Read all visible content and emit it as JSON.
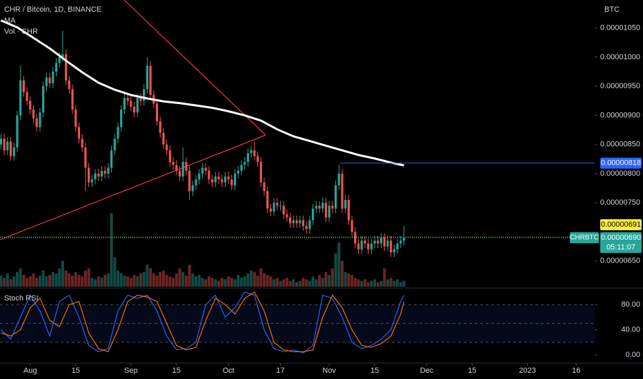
{
  "chart_data": [
    {
      "type": "candlestick",
      "title": "CHR / Bitcoin, 1D, BINANCE",
      "y_axis_label": "BTC",
      "up_color": "#26a69a",
      "down_color": "#ef5350",
      "xlim": [
        -0.3,
        182.7
      ],
      "xticks": [
        {
          "value": 9,
          "label": "Aug"
        },
        {
          "value": 23,
          "label": "15"
        },
        {
          "value": 40,
          "label": "Sep"
        },
        {
          "value": 54,
          "label": "15"
        },
        {
          "value": 70,
          "label": "Oct"
        },
        {
          "value": 86,
          "label": "17"
        },
        {
          "value": 101,
          "label": "Nov"
        },
        {
          "value": 115,
          "label": "15"
        },
        {
          "value": 131,
          "label": "Dec"
        },
        {
          "value": 145,
          "label": "15"
        },
        {
          "value": 162,
          "label": "2023"
        },
        {
          "value": 177,
          "label": "16"
        }
      ],
      "ylim": [
        6.06e-06,
        1.098e-05
      ],
      "yticks": [
        {
          "value": 1.05e-05,
          "label": "0.00001050"
        },
        {
          "value": 1e-05,
          "label": "0.00001000"
        },
        {
          "value": 9.5e-06,
          "label": "0.00000950"
        },
        {
          "value": 9e-06,
          "label": "0.00000900"
        },
        {
          "value": 8.5e-06,
          "label": "0.00000850"
        },
        {
          "value": 8e-06,
          "label": "0.00000800"
        },
        {
          "value": 7.5e-06,
          "label": "0.00000750"
        },
        {
          "value": 6.5e-06,
          "label": "0.00000650"
        }
      ],
      "open": [
        8.5e-06,
        8.6e-06,
        8.4e-06,
        8.55e-06,
        8.3e-06,
        8.45e-06,
        9e-06,
        9.6e-06,
        9.4e-06,
        9.25e-06,
        9.1e-06,
        8.95e-06,
        8.8e-06,
        9.05e-06,
        9.5e-06,
        9.65e-06,
        9.55e-06,
        9.75e-06,
        9.9e-06,
        1e-05,
        1.005e-05,
        9.6e-06,
        9.45e-06,
        9.1e-06,
        8.8e-06,
        8.6e-06,
        8.45e-06,
        8.1e-06,
        7.85e-06,
        7.9e-06,
        8e-06,
        7.95e-06,
        8.05e-06,
        8e-06,
        8.1e-06,
        8.4e-06,
        8.6e-06,
        8.8e-06,
        9.1e-06,
        9.3e-06,
        9.25e-06,
        9.15e-06,
        9.05e-06,
        9.3e-06,
        9.25e-06,
        9.45e-06,
        9.85e-06,
        9.35e-06,
        9.2e-06,
        8.9e-06,
        8.7e-06,
        8.5e-06,
        8.4e-06,
        8.2e-06,
        8.15e-06,
        8.05e-06,
        7.95e-06,
        8.2e-06,
        8.05e-06,
        7.7e-06,
        7.8e-06,
        7.9e-06,
        8e-06,
        8.1e-06,
        8.05e-06,
        7.9e-06,
        7.85e-06,
        7.95e-06,
        7.9e-06,
        7.85e-06,
        7.95e-06,
        7.9e-06,
        7.8e-06,
        8e-06,
        8.05e-06,
        8.15e-06,
        8.2e-06,
        8.35e-06,
        8.4e-06,
        8.3e-06,
        8.2e-06,
        7.85e-06,
        7.7e-06,
        7.4e-06,
        7.35e-06,
        7.5e-06,
        7.45e-06,
        7.45e-06,
        7.3e-06,
        7.25e-06,
        7.15e-06,
        7.2e-06,
        7.15e-06,
        7.2e-06,
        7.1e-06,
        7.05e-06,
        7.2e-06,
        7.4e-06,
        7.45e-06,
        7.4e-06,
        7.5e-06,
        7.25e-06,
        7.45e-06,
        7.4e-06,
        7.8e-06,
        8e-06,
        7.4e-06,
        7.55e-06,
        7.2e-06,
        7e-06,
        6.8e-06,
        6.7e-06,
        6.85e-06,
        6.8e-06,
        6.7e-06,
        6.8e-06,
        6.85e-06,
        6.8e-06,
        6.9e-06,
        6.75e-06,
        6.85e-06,
        6.65e-06,
        6.7e-06,
        6.8e-06,
        6.85e-06
      ],
      "high": [
        8.68e-06,
        8.68e-06,
        8.63e-06,
        8.63e-06,
        8.53e-06,
        9.08e-06,
        9.85e-06,
        9.68e-06,
        9.48e-06,
        9.33e-06,
        9.18e-06,
        9.03e-06,
        9.13e-06,
        9.58e-06,
        9.73e-06,
        9.73e-06,
        9.83e-06,
        9.98e-06,
        1.008e-05,
        1.045e-05,
        1.013e-05,
        9.68e-06,
        9.53e-06,
        9.18e-06,
        8.88e-06,
        8.68e-06,
        8.53e-06,
        8.18e-06,
        7.98e-06,
        8.08e-06,
        8.08e-06,
        8.13e-06,
        8.13e-06,
        8.18e-06,
        8.48e-06,
        8.68e-06,
        8.88e-06,
        9.18e-06,
        9.38e-06,
        9.38e-06,
        9.33e-06,
        9.23e-06,
        9.38e-06,
        9.38e-06,
        9.53e-06,
        1e-05,
        9.93e-06,
        9.43e-06,
        9.28e-06,
        8.98e-06,
        8.78e-06,
        8.58e-06,
        8.48e-06,
        8.28e-06,
        8.23e-06,
        8.13e-06,
        8.45e-06,
        8.28e-06,
        8.13e-06,
        7.88e-06,
        7.98e-06,
        8.08e-06,
        8.18e-06,
        8.18e-06,
        8.13e-06,
        7.98e-06,
        8.03e-06,
        8.03e-06,
        7.98e-06,
        8.03e-06,
        8.03e-06,
        7.98e-06,
        8.08e-06,
        8.13e-06,
        8.23e-06,
        8.28e-06,
        8.43e-06,
        8.48e-06,
        8.55e-06,
        8.38e-06,
        8.28e-06,
        7.93e-06,
        7.78e-06,
        7.48e-06,
        7.58e-06,
        7.58e-06,
        7.53e-06,
        7.53e-06,
        7.38e-06,
        7.33e-06,
        7.28e-06,
        7.28e-06,
        7.28e-06,
        7.28e-06,
        7.18e-06,
        7.28e-06,
        7.48e-06,
        7.53e-06,
        7.53e-06,
        7.58e-06,
        7.58e-06,
        7.53e-06,
        7.53e-06,
        7.88e-06,
        8.15e-06,
        8.08e-06,
        7.63e-06,
        7.63e-06,
        7.28e-06,
        7.08e-06,
        6.88e-06,
        6.93e-06,
        6.93e-06,
        6.88e-06,
        6.88e-06,
        6.93e-06,
        6.93e-06,
        6.98e-06,
        6.98e-06,
        6.93e-06,
        6.93e-06,
        6.78e-06,
        6.88e-06,
        6.93e-06,
        7.1e-06
      ],
      "low": [
        8.42e-06,
        8.32e-06,
        8.32e-06,
        8.22e-06,
        8.22e-06,
        8.37e-06,
        8.92e-06,
        9.32e-06,
        9.17e-06,
        9.02e-06,
        8.87e-06,
        8.72e-06,
        8.72e-06,
        8.97e-06,
        9.42e-06,
        9.47e-06,
        9.47e-06,
        9.67e-06,
        9.82e-06,
        9.92e-06,
        9.52e-06,
        9.37e-06,
        9.02e-06,
        8.72e-06,
        8.52e-06,
        8.37e-06,
        7.7e-06,
        7.77e-06,
        7.77e-06,
        7.82e-06,
        7.87e-06,
        7.87e-06,
        7.92e-06,
        7.92e-06,
        8.02e-06,
        8.32e-06,
        8.52e-06,
        8.72e-06,
        9.02e-06,
        9.17e-06,
        9.07e-06,
        8.97e-06,
        8.97e-06,
        9.17e-06,
        9.17e-06,
        9.37e-06,
        9.27e-06,
        9.12e-06,
        8.82e-06,
        8.62e-06,
        8.42e-06,
        8.32e-06,
        8.12e-06,
        8.07e-06,
        7.97e-06,
        7.87e-06,
        7.87e-06,
        7.97e-06,
        7.55e-06,
        7.62e-06,
        7.72e-06,
        7.82e-06,
        7.92e-06,
        7.97e-06,
        7.82e-06,
        7.77e-06,
        7.77e-06,
        7.82e-06,
        7.77e-06,
        7.77e-06,
        7.82e-06,
        7.72e-06,
        7.72e-06,
        7.92e-06,
        7.97e-06,
        8.07e-06,
        8.12e-06,
        8.27e-06,
        8.22e-06,
        8.12e-06,
        7.77e-06,
        7.62e-06,
        7.32e-06,
        7.27e-06,
        7.27e-06,
        7.37e-06,
        7.37e-06,
        7.22e-06,
        7.17e-06,
        7.07e-06,
        7.07e-06,
        7.07e-06,
        7.07e-06,
        7.02e-06,
        6.97e-06,
        6.97e-06,
        7.12e-06,
        7.32e-06,
        7.32e-06,
        7.32e-06,
        7.17e-06,
        7.17e-06,
        7.32e-06,
        7.32e-06,
        7.72e-06,
        7.32e-06,
        7.32e-06,
        7.12e-06,
        6.92e-06,
        6.72e-06,
        6.62e-06,
        6.62e-06,
        6.72e-06,
        6.62e-06,
        6.62e-06,
        6.72e-06,
        6.72e-06,
        6.72e-06,
        6.67e-06,
        6.67e-06,
        6.57e-06,
        6.57e-06,
        6.62e-06,
        6.72e-06,
        6.77e-06
      ],
      "close": [
        8.6e-06,
        8.4e-06,
        8.55e-06,
        8.3e-06,
        8.45e-06,
        9e-06,
        9.6e-06,
        9.4e-06,
        9.25e-06,
        9.1e-06,
        8.95e-06,
        8.8e-06,
        9.05e-06,
        9.5e-06,
        9.65e-06,
        9.55e-06,
        9.75e-06,
        9.9e-06,
        1e-05,
        1.005e-05,
        9.6e-06,
        9.45e-06,
        9.1e-06,
        8.8e-06,
        8.6e-06,
        8.45e-06,
        8.1e-06,
        7.85e-06,
        7.9e-06,
        8e-06,
        7.95e-06,
        8.05e-06,
        8e-06,
        8.1e-06,
        8.4e-06,
        8.6e-06,
        8.8e-06,
        9.1e-06,
        9.3e-06,
        9.25e-06,
        9.15e-06,
        9.05e-06,
        9.3e-06,
        9.25e-06,
        9.45e-06,
        9.85e-06,
        9.35e-06,
        9.2e-06,
        8.9e-06,
        8.7e-06,
        8.5e-06,
        8.4e-06,
        8.2e-06,
        8.15e-06,
        8.05e-06,
        7.95e-06,
        8.2e-06,
        8.05e-06,
        7.7e-06,
        7.8e-06,
        7.9e-06,
        8e-06,
        8.1e-06,
        8.05e-06,
        7.9e-06,
        7.85e-06,
        7.95e-06,
        7.9e-06,
        7.85e-06,
        7.95e-06,
        7.9e-06,
        7.8e-06,
        8e-06,
        8.05e-06,
        8.15e-06,
        8.2e-06,
        8.35e-06,
        8.4e-06,
        8.3e-06,
        8.2e-06,
        7.85e-06,
        7.7e-06,
        7.4e-06,
        7.35e-06,
        7.5e-06,
        7.45e-06,
        7.45e-06,
        7.3e-06,
        7.25e-06,
        7.15e-06,
        7.2e-06,
        7.15e-06,
        7.2e-06,
        7.1e-06,
        7.05e-06,
        7.2e-06,
        7.4e-06,
        7.45e-06,
        7.4e-06,
        7.5e-06,
        7.25e-06,
        7.45e-06,
        7.4e-06,
        7.8e-06,
        8e-06,
        7.4e-06,
        7.55e-06,
        7.2e-06,
        7e-06,
        6.8e-06,
        6.7e-06,
        6.85e-06,
        6.8e-06,
        6.7e-06,
        6.8e-06,
        6.85e-06,
        6.8e-06,
        6.9e-06,
        6.75e-06,
        6.85e-06,
        6.65e-06,
        6.7e-06,
        6.8e-06,
        6.85e-06,
        6.9e-06
      ],
      "series": [
        {
          "name": "MA",
          "color": "#ffffff",
          "x": [
            0,
            5,
            10,
            15,
            20,
            25,
            30,
            35,
            40,
            45,
            50,
            55,
            60,
            65,
            70,
            75,
            80,
            85,
            90,
            95,
            100,
            105,
            110,
            115,
            120,
            124
          ],
          "values": [
            1.063e-05,
            1.051e-05,
            1.033e-05,
            1.015e-05,
            9.94e-06,
            9.74e-06,
            9.56e-06,
            9.44e-06,
            9.35e-06,
            9.29e-06,
            9.24e-06,
            9.21e-06,
            9.17e-06,
            9.13e-06,
            9.07e-06,
            9e-06,
            8.91e-06,
            8.76e-06,
            8.64e-06,
            8.56e-06,
            8.48e-06,
            8.4e-06,
            8.32e-06,
            8.26e-06,
            8.19e-06,
            8.14e-06
          ]
        }
      ],
      "volume": {
        "name": "Vol · CHR",
        "ylim": [
          0,
          390
        ],
        "values": [
          15,
          12,
          18,
          10,
          14,
          20,
          25,
          16,
          12,
          14,
          18,
          12,
          15,
          22,
          14,
          16,
          20,
          18,
          25,
          35,
          22,
          18,
          15,
          20,
          16,
          14,
          22,
          25,
          12,
          10,
          14,
          12,
          16,
          18,
          100,
          40,
          22,
          18,
          15,
          14,
          12,
          16,
          14,
          18,
          20,
          30,
          25,
          18,
          15,
          20,
          22,
          16,
          14,
          12,
          18,
          25,
          20,
          15,
          30,
          18,
          14,
          16,
          12,
          10,
          14,
          12,
          10,
          8,
          12,
          10,
          14,
          12,
          10,
          16,
          12,
          14,
          18,
          22,
          20,
          15,
          25,
          18,
          16,
          14,
          10,
          12,
          8,
          10,
          12,
          8,
          10,
          6,
          8,
          12,
          10,
          8,
          14,
          10,
          16,
          12,
          20,
          16,
          25,
          45,
          60,
          35,
          20,
          18,
          16,
          12,
          10,
          8,
          10,
          6,
          8,
          10,
          6,
          8,
          25,
          10,
          12,
          8,
          10,
          6,
          8
        ]
      },
      "price_lines": [
        {
          "value": 8.18e-06,
          "label": "0.00000818",
          "color": "#2962ff"
        },
        {
          "value": 6.91e-06,
          "label": "0.00000691",
          "color": "#ffeb3b"
        }
      ],
      "last_price": {
        "symbol": "CHRBTC",
        "value": 6.9e-06,
        "label": "0.00000690",
        "countdown": "05:11:07",
        "color": "#26a69a"
      }
    },
    {
      "type": "line",
      "title": "Stoch RSI",
      "xlim": [
        -0.3,
        182.7
      ],
      "ylim": [
        -11,
        102
      ],
      "yticks": [
        {
          "value": 80,
          "label": "80.00"
        },
        {
          "value": 40,
          "label": "40.00"
        },
        {
          "value": 0,
          "label": "0.00"
        }
      ],
      "band": [
        20,
        80
      ],
      "midline": 50,
      "series": [
        {
          "color": "#2962ff",
          "x": [
            0,
            3,
            6,
            9,
            12,
            15,
            18,
            21,
            24,
            27,
            30,
            33,
            36,
            39,
            42,
            45,
            48,
            51,
            54,
            57,
            60,
            63,
            66,
            69,
            72,
            75,
            78,
            81,
            84,
            87,
            90,
            93,
            96,
            99,
            102,
            105,
            108,
            111,
            114,
            117,
            120,
            123,
            124
          ],
          "values": [
            40,
            25,
            60,
            95,
            70,
            30,
            85,
            95,
            60,
            15,
            5,
            10,
            70,
            95,
            90,
            95,
            70,
            30,
            8,
            10,
            20,
            80,
            95,
            60,
            75,
            100,
            95,
            40,
            10,
            5,
            8,
            3,
            15,
            95,
            90,
            60,
            20,
            10,
            15,
            25,
            40,
            85,
            95
          ]
        },
        {
          "color": "#ff6d00",
          "x": [
            0,
            3,
            6,
            9,
            12,
            15,
            18,
            21,
            24,
            27,
            30,
            33,
            36,
            39,
            42,
            45,
            48,
            51,
            54,
            57,
            60,
            63,
            66,
            69,
            72,
            75,
            78,
            81,
            84,
            87,
            90,
            93,
            96,
            99,
            102,
            105,
            108,
            111,
            114,
            117,
            120,
            123,
            124
          ],
          "values": [
            35,
            30,
            40,
            75,
            90,
            55,
            45,
            80,
            85,
            35,
            10,
            5,
            40,
            85,
            95,
            92,
            85,
            50,
            15,
            8,
            12,
            55,
            90,
            80,
            65,
            90,
            100,
            70,
            20,
            8,
            5,
            5,
            8,
            60,
            95,
            75,
            40,
            15,
            12,
            18,
            30,
            65,
            85
          ]
        }
      ]
    }
  ]
}
